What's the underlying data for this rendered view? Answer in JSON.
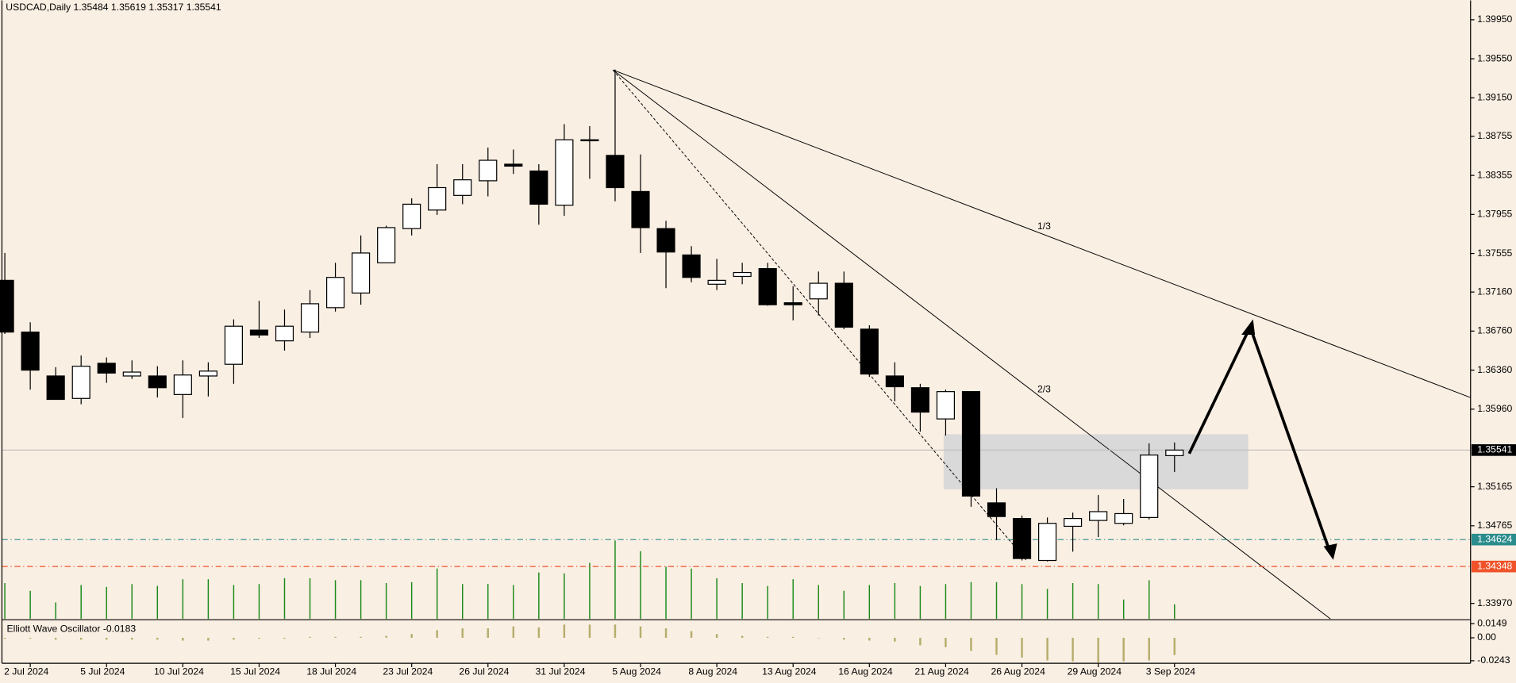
{
  "chart_data": [
    {
      "type": "candlestick",
      "title": "USDCAD,Daily",
      "categories": [
        null,
        "2 Jul 2024",
        null,
        null,
        "5 Jul 2024",
        null,
        null,
        "10 Jul 2024",
        null,
        null,
        "15 Jul 2024",
        null,
        null,
        "18 Jul 2024",
        null,
        null,
        "23 Jul 2024",
        null,
        null,
        "26 Jul 2024",
        null,
        null,
        "31 Jul 2024",
        null,
        null,
        "5 Aug 2024",
        null,
        null,
        "8 Aug 2024",
        null,
        null,
        "13 Aug 2024",
        null,
        null,
        "16 Aug 2024",
        null,
        null,
        "21 Aug 2024",
        null,
        null,
        "26 Aug 2024",
        null,
        null,
        "29 Aug 2024",
        null,
        null,
        "3 Sep 2024"
      ],
      "open": [
        1.3728,
        1.3675,
        1.363,
        1.3607,
        1.3643,
        1.363,
        1.363,
        1.3611,
        1.363,
        1.3642,
        1.3677,
        1.3666,
        1.3675,
        1.37,
        1.3715,
        1.3746,
        1.3781,
        1.38,
        1.3815,
        1.383,
        1.3847,
        1.384,
        1.3805,
        1.3872,
        1.3856,
        1.3819,
        1.3781,
        1.3754,
        1.3724,
        1.3732,
        1.374,
        1.3705,
        1.3709,
        1.3725,
        1.3678,
        1.363,
        1.3618,
        1.3586,
        1.3614,
        1.35,
        1.3484,
        1.3441,
        1.3476,
        1.3482,
        1.3479,
        1.3485,
        1.35484
      ],
      "high": [
        1.3756,
        1.3685,
        1.3639,
        1.3651,
        1.3649,
        1.3646,
        1.364,
        1.3646,
        1.3644,
        1.3688,
        1.3707,
        1.3698,
        1.3718,
        1.3746,
        1.3774,
        1.3784,
        1.3812,
        1.3847,
        1.3847,
        1.3864,
        1.3862,
        1.3847,
        1.3888,
        1.3886,
        1.3944,
        1.3857,
        1.3789,
        1.3763,
        1.375,
        1.3746,
        1.3746,
        1.3722,
        1.3737,
        1.3737,
        1.3682,
        1.3644,
        1.3622,
        1.3616,
        1.3614,
        1.3515,
        1.3487,
        1.3485,
        1.349,
        1.3508,
        1.3504,
        1.3561,
        1.35619
      ],
      "low": [
        1.3673,
        1.3616,
        1.3606,
        1.3601,
        1.3623,
        1.3627,
        1.3608,
        1.3587,
        1.3609,
        1.3622,
        1.3669,
        1.3656,
        1.3669,
        1.3696,
        1.3703,
        1.3746,
        1.3774,
        1.3795,
        1.3806,
        1.3814,
        1.3837,
        1.3785,
        1.3794,
        1.3832,
        1.3809,
        1.3756,
        1.372,
        1.3726,
        1.3718,
        1.3724,
        1.3702,
        1.3687,
        1.3692,
        1.3678,
        1.3629,
        1.3604,
        1.3573,
        1.3569,
        1.3496,
        1.3462,
        1.3441,
        1.344,
        1.345,
        1.3465,
        1.3477,
        1.3483,
        1.35317
      ],
      "close": [
        1.3675,
        1.3636,
        1.3606,
        1.364,
        1.3633,
        1.3634,
        1.3618,
        1.3631,
        1.3635,
        1.3681,
        1.3672,
        1.3681,
        1.3704,
        1.3731,
        1.3756,
        1.3782,
        1.3806,
        1.3823,
        1.3831,
        1.3851,
        1.3845,
        1.3806,
        1.3872,
        1.3871,
        1.3823,
        1.3782,
        1.3757,
        1.3731,
        1.3728,
        1.3736,
        1.3703,
        1.3703,
        1.3725,
        1.368,
        1.3632,
        1.3619,
        1.3593,
        1.3614,
        1.3507,
        1.3486,
        1.3443,
        1.3479,
        1.3484,
        1.3491,
        1.3489,
        1.3549,
        1.35541
      ],
      "volume": [
        37,
        29,
        17,
        35,
        33,
        36,
        34,
        41,
        41,
        35,
        36,
        42,
        42,
        40,
        40,
        37,
        38,
        52,
        36,
        36,
        35,
        48,
        47,
        58,
        81,
        70,
        54,
        52,
        42,
        37,
        34,
        41,
        35,
        29,
        35,
        37,
        34,
        36,
        38,
        38,
        36,
        31,
        37,
        36,
        20,
        40,
        15
      ],
      "ylim": [
        1.33812,
        1.40148
      ],
      "yticks": [
        {
          "value": 1.3995,
          "label": "1.39950"
        },
        {
          "value": 1.3955,
          "label": "1.39550"
        },
        {
          "value": 1.3915,
          "label": "1.39150"
        },
        1.38755,
        {
          "value": 1.38355,
          "label": "1.38355"
        },
        {
          "value": 1.37955,
          "label": "1.37955"
        },
        1.37555,
        {
          "value": 1.3716,
          "label": "1.37160"
        },
        {
          "value": 1.3676,
          "label": "1.36760"
        },
        {
          "value": 1.3636,
          "label": "1.36360"
        },
        {
          "value": 1.3596,
          "label": "1.35960"
        },
        1.35165,
        1.34765,
        {
          "value": 1.3397,
          "label": "1.33970"
        }
      ],
      "levels": [
        {
          "value": 1.35541,
          "color": "#000000"
        },
        {
          "value": 1.34624,
          "color": "#2a8c8c"
        },
        {
          "value": 1.34348,
          "color": "#f0532a"
        }
      ],
      "annotations": [
        "1/3",
        "2/3"
      ],
      "up_color": "#ffffff",
      "down_color": "#000000",
      "volume_color": "#1a8a1a"
    },
    {
      "type": "bar",
      "title": "Elliott Wave Oscillator",
      "values": [
        -0.001,
        -0.001,
        -0.002,
        -0.002,
        -0.002,
        -0.002,
        -0.002,
        -0.003,
        -0.003,
        -0.002,
        -0.001,
        -0.001,
        0.001,
        0.001,
        0.001,
        0.002,
        0.004,
        0.008,
        0.01,
        0.01,
        0.012,
        0.011,
        0.014,
        0.014,
        0.014,
        0.012,
        0.01,
        0.007,
        0.004,
        0.002,
        0.001,
        0.001,
        0,
        -0.002,
        -0.003,
        -0.004,
        -0.008,
        -0.01,
        -0.014,
        -0.018,
        -0.021,
        -0.024,
        -0.025,
        -0.026,
        -0.025,
        -0.024,
        -0.0183
      ],
      "ylim": [
        -0.027,
        0.017
      ],
      "yticks": [
        0.0149,
        {
          "value": 0,
          "label": "0.00"
        },
        -0.0243
      ],
      "color": "#b5ad6b"
    }
  ]
}
